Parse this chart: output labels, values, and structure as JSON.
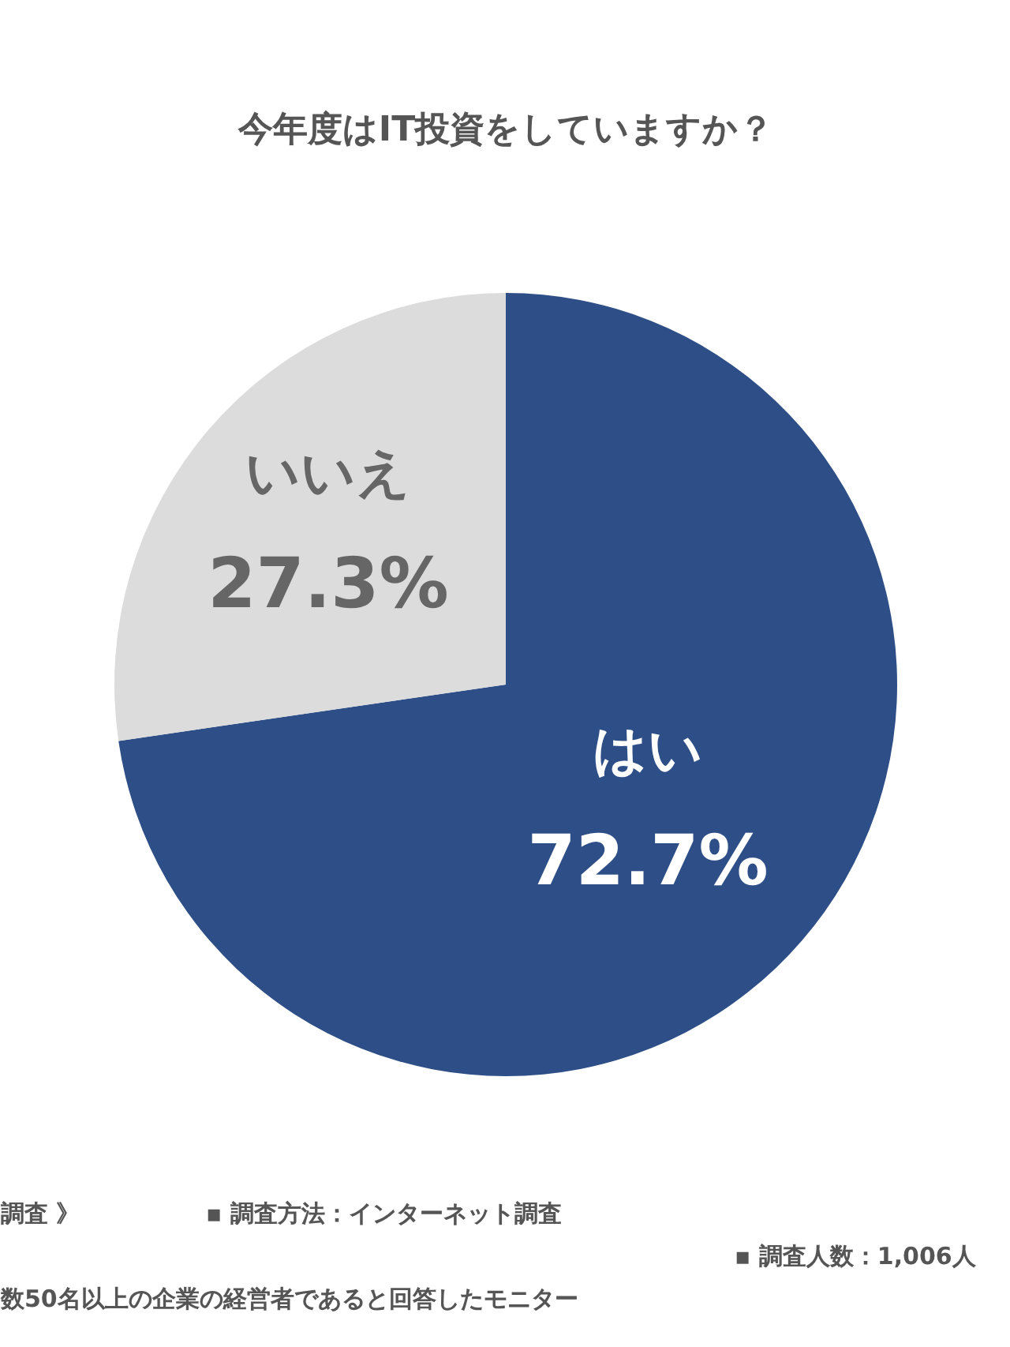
{
  "chart_data": {
    "type": "pie",
    "title": "今年度はIT投資をしていますか？",
    "categories": [
      "はい",
      "いいえ"
    ],
    "values": [
      72.7,
      27.3
    ],
    "colors": [
      "#2d4e86",
      "#dcdcdc"
    ],
    "value_labels": [
      "72.7%",
      "27.3%"
    ],
    "annotations": [
      "調査 》",
      "▪ 調査方法：インターネット調査",
      "▪ 調査人数：1,006人",
      "数50名以上の企業の経営者であると回答したモニター"
    ]
  }
}
